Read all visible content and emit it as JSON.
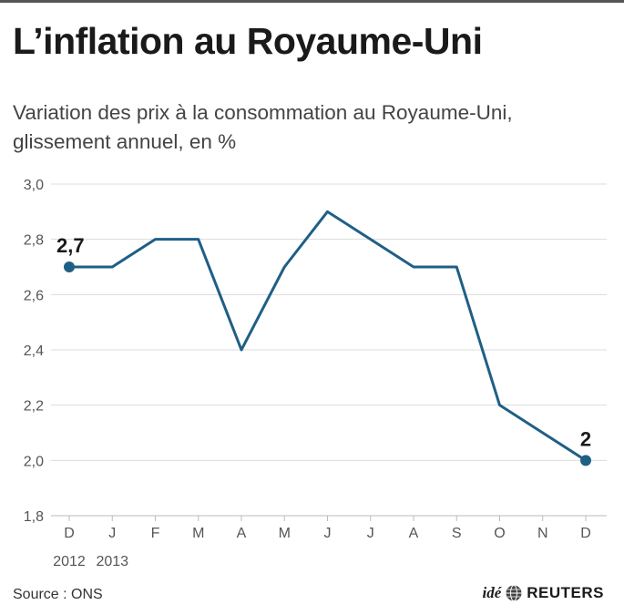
{
  "header": {
    "title": "L’inflation au Royaume-Uni",
    "subtitle": "Variation des prix à la consommation au Royaume-Uni, glissement annuel, en %"
  },
  "footer": {
    "source": "Source : ONS",
    "brand_ide": "idé",
    "brand_reuters": "REUTERS"
  },
  "colors": {
    "line": "#1f5f86",
    "grid": "#dcdcdc",
    "tick_text": "#555555",
    "label_text": "#1a1a1a"
  },
  "chart_data": {
    "type": "line",
    "categories": [
      "D",
      "J",
      "F",
      "M",
      "A",
      "M",
      "J",
      "J",
      "A",
      "S",
      "O",
      "N",
      "D"
    ],
    "year_labels": [
      {
        "index": 0,
        "label": "2012"
      },
      {
        "index": 1,
        "label": "2013"
      }
    ],
    "values": [
      2.7,
      2.7,
      2.8,
      2.8,
      2.4,
      2.7,
      2.9,
      2.8,
      2.7,
      2.7,
      2.2,
      2.1,
      2.0
    ],
    "ylim": [
      1.8,
      3.0
    ],
    "yticks": [
      "1,8",
      "2,0",
      "2,2",
      "2,4",
      "2,6",
      "2,8",
      "3,0"
    ],
    "ytick_values": [
      1.8,
      2.0,
      2.2,
      2.4,
      2.6,
      2.8,
      3.0
    ],
    "grid": true,
    "annotations": [
      {
        "index": 0,
        "label": "2,7"
      },
      {
        "index": 12,
        "label": "2"
      }
    ]
  }
}
